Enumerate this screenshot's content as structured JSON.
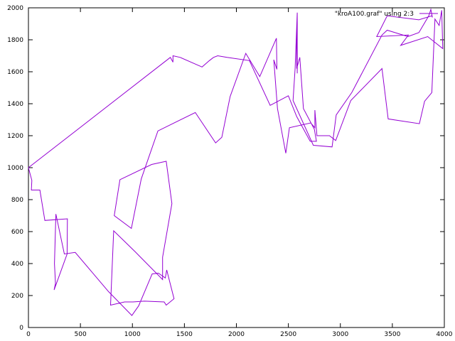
{
  "chart_data": {
    "type": "line",
    "xlim": [
      0,
      4000
    ],
    "ylim": [
      0,
      2000
    ],
    "xticks": [
      "0",
      "500",
      "1000",
      "1500",
      "2000",
      "2500",
      "3000",
      "3500",
      "4000"
    ],
    "yticks": [
      "0",
      "200",
      "400",
      "600",
      "800",
      "1000",
      "1200",
      "1400",
      "1600",
      "1800",
      "2000"
    ],
    "grid": false,
    "legend": "top-right",
    "series": [
      {
        "name": "\"kroA100.graf\" using 2:3",
        "color": "#9400d3",
        "x": [
          0,
          33,
          28,
          110,
          158,
          375,
          372,
          247,
          260,
          258,
          250,
          264,
          345,
          450,
          770,
          995,
          1060,
          1190,
          1250,
          1316,
          1330,
          1400,
          1325,
          1305,
          1115,
          1005,
          925,
          790,
          820,
          1025,
          1290,
          1290,
          1380,
          1325,
          1185,
          880,
          825,
          990,
          1085,
          1245,
          1605,
          1800,
          1860,
          1940,
          2090,
          2225,
          2385,
          2390,
          2360,
          2395,
          2475,
          2510,
          2715,
          2755,
          2755,
          2775,
          2895,
          2955,
          3100,
          3400,
          3460,
          3760,
          3810,
          3880,
          3910,
          3950,
          3975,
          3985,
          3840,
          3580,
          3655,
          3350,
          3450,
          3755,
          3880,
          3885,
          3870,
          3850,
          3755,
          3650,
          3450,
          3400,
          3110,
          2960,
          2920,
          2740,
          2545,
          2565,
          2585,
          2585,
          2585,
          2580,
          2580,
          2610,
          2645,
          2750,
          2770,
          2710,
          2580,
          2500,
          2325,
          2125,
          1910,
          1820,
          1780,
          1740,
          1670,
          1460,
          1390,
          1390,
          1365,
          0
        ],
        "y": [
          1000,
          920,
          860,
          860,
          670,
          680,
          460,
          235,
          275,
          305,
          400,
          710,
          460,
          470,
          225,
          75,
          135,
          335,
          340,
          310,
          360,
          180,
          140,
          160,
          165,
          160,
          160,
          140,
          605,
          475,
          300,
          440,
          775,
          1040,
          1020,
          925,
          700,
          620,
          930,
          1230,
          1345,
          1155,
          1190,
          1445,
          1715,
          1570,
          1810,
          1615,
          1675,
          1370,
          1090,
          1250,
          1280,
          1250,
          1360,
          1200,
          1200,
          1170,
          1420,
          1620,
          1305,
          1275,
          1415,
          1470,
          1930,
          1890,
          1985,
          1745,
          1820,
          1765,
          1830,
          1820,
          1950,
          1925,
          1950,
          1940,
          1990,
          1950,
          1845,
          1820,
          1860,
          1830,
          1470,
          1330,
          1130,
          1140,
          1420,
          1620,
          1970,
          1970,
          1590,
          1870,
          1620,
          1690,
          1370,
          1240,
          1165,
          1165,
          1320,
          1450,
          1390,
          1670,
          1690,
          1700,
          1690,
          1670,
          1630,
          1690,
          1700,
          1660,
          1690,
          1000
        ]
      }
    ]
  }
}
